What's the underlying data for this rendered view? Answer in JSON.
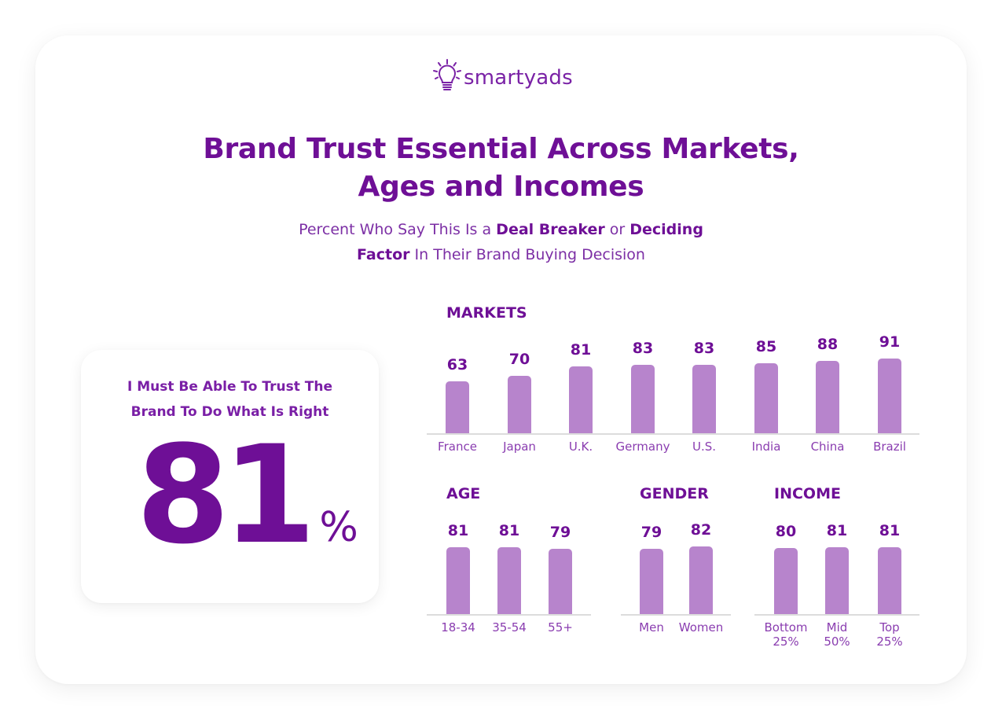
{
  "brand": {
    "name": "smartyads",
    "icon": "lightbulb-icon"
  },
  "header": {
    "title_line1": "Brand Trust Essential Across Markets,",
    "title_line2": "Ages and Incomes",
    "subtitle": {
      "part1": "Percent Who Say This Is a ",
      "bold1": "Deal Breaker",
      "part2": " or ",
      "bold2": "Deciding",
      "bold3": "Factor",
      "part3": " In Their Brand Buying Decision"
    }
  },
  "stat_card": {
    "label_line1": "I Must Be Able To Trust The",
    "label_line2": "Brand To Do What Is Right",
    "value": "81",
    "unit": "%"
  },
  "colors": {
    "primary": "#6e0f96",
    "bar": "#b784cc",
    "axis": "#dcdcdc",
    "label": "#8a3db0"
  },
  "chart_data": [
    {
      "type": "bar",
      "title": "MARKETS",
      "categories": [
        "France",
        "Japan",
        "U.K.",
        "Germany",
        "U.S.",
        "India",
        "China",
        "Brazil"
      ],
      "values": [
        63,
        70,
        81,
        83,
        83,
        85,
        88,
        91
      ],
      "xlabel": "",
      "ylabel": "",
      "grid": false,
      "data_labels": true
    },
    {
      "type": "bar",
      "title": "AGE",
      "categories": [
        "18-34",
        "35-54",
        "55+"
      ],
      "values": [
        81,
        81,
        79
      ],
      "xlabel": "",
      "ylabel": "",
      "grid": false,
      "data_labels": true
    },
    {
      "type": "bar",
      "title": "GENDER",
      "categories": [
        "Men",
        "Women"
      ],
      "values": [
        79,
        82
      ],
      "xlabel": "",
      "ylabel": "",
      "grid": false,
      "data_labels": true
    },
    {
      "type": "bar",
      "title": "INCOME",
      "categories": [
        "Bottom 25%",
        "Mid 50%",
        "Top 25%"
      ],
      "category_lines": [
        [
          "Bottom",
          "25%"
        ],
        [
          "Mid",
          "50%"
        ],
        [
          "Top",
          "25%"
        ]
      ],
      "values": [
        80,
        81,
        81
      ],
      "xlabel": "",
      "ylabel": "",
      "grid": false,
      "data_labels": true
    }
  ]
}
